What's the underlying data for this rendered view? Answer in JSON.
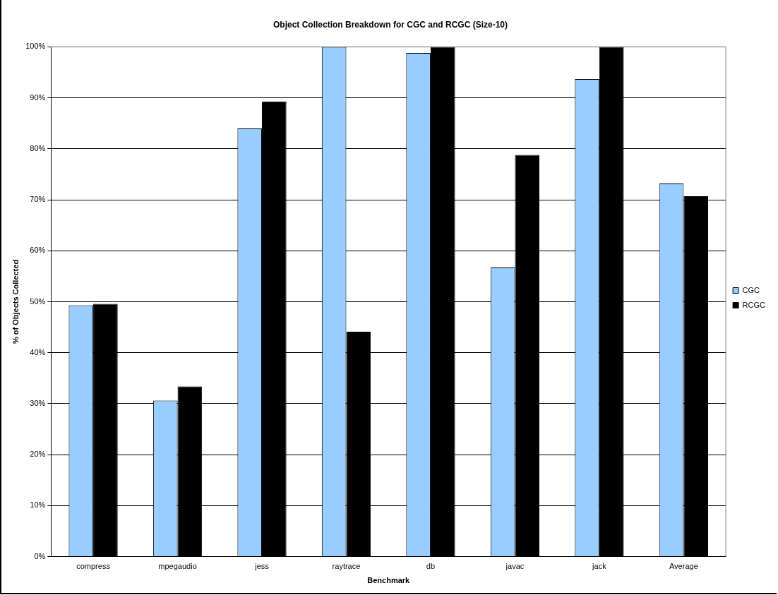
{
  "chart_data": {
    "type": "bar",
    "title": "Object Collection Breakdown for CGC and RCGC (Size-10)",
    "xlabel": "Benchmark",
    "ylabel": "% of Objects Collected",
    "categories": [
      "compress",
      "mpegaudio",
      "jess",
      "raytrace",
      "db",
      "javac",
      "jack",
      "Average"
    ],
    "series": [
      {
        "name": "CGC",
        "color": "#99ccff",
        "values": [
          49.3,
          30.6,
          84.0,
          100,
          98.8,
          56.7,
          93.7,
          73.2
        ]
      },
      {
        "name": "RCGC",
        "color": "#000000",
        "values": [
          49.6,
          33.4,
          89.3,
          44.1,
          100,
          78.8,
          100,
          70.7
        ]
      }
    ],
    "ylim": [
      0,
      100
    ],
    "yticks": [
      {
        "value": 0,
        "label": "0%"
      },
      {
        "value": 10,
        "label": "10%"
      },
      {
        "value": 20,
        "label": "20%"
      },
      {
        "value": 30,
        "label": "30%"
      },
      {
        "value": 40,
        "label": "40%"
      },
      {
        "value": 50,
        "label": "50%"
      },
      {
        "value": 60,
        "label": "60%"
      },
      {
        "value": 70,
        "label": "70%"
      },
      {
        "value": 80,
        "label": "80%"
      },
      {
        "value": 90,
        "label": "90%"
      },
      {
        "value": 100,
        "label": "100%"
      }
    ],
    "grid": "y",
    "legend": "right"
  }
}
